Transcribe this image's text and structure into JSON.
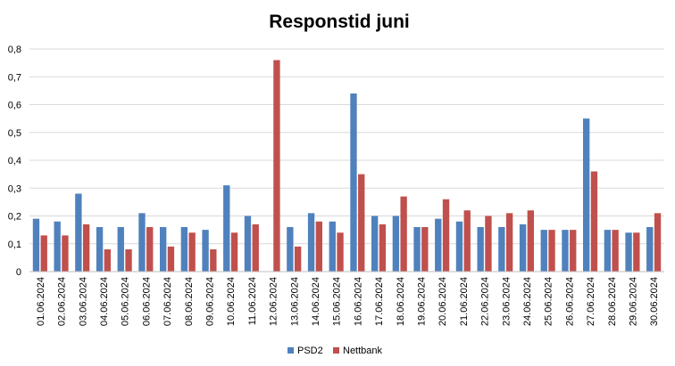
{
  "chart_data": {
    "type": "bar",
    "title": "Responstid juni",
    "xlabel": "",
    "ylabel": "",
    "ylim": [
      0,
      0.8
    ],
    "yticks": [
      "0",
      "0,1",
      "0,2",
      "0,3",
      "0,4",
      "0,5",
      "0,6",
      "0,7",
      "0,8"
    ],
    "grid": true,
    "legend_position": "bottom",
    "categories": [
      "01.06.2024",
      "02.06.2024",
      "03.06.2024",
      "04.06.2024",
      "05.06.2024",
      "06.06.2024",
      "07.06.2024",
      "08.06.2024",
      "09.06.2024",
      "10.06.2024",
      "11.06.2024",
      "12.06.2024",
      "13.06.2024",
      "14.06.2024",
      "15.06.2024",
      "16.06.2024",
      "17.06.2024",
      "18.06.2024",
      "19.06.2024",
      "20.06.2024",
      "21.06.2024",
      "22.06.2024",
      "23.06.2024",
      "24.06.2024",
      "25.06.2024",
      "26.06.2024",
      "27.06.2024",
      "28.06.2024",
      "29.06.2024",
      "30.06.2024"
    ],
    "series": [
      {
        "name": "PSD2",
        "color": "#4f81bd",
        "values": [
          0.19,
          0.18,
          0.28,
          0.16,
          0.16,
          0.21,
          0.16,
          0.16,
          0.15,
          0.31,
          0.2,
          null,
          0.16,
          0.21,
          0.18,
          0.64,
          0.2,
          0.2,
          0.16,
          0.19,
          0.18,
          0.16,
          0.16,
          0.17,
          0.15,
          0.15,
          0.55,
          0.15,
          0.14,
          0.16
        ]
      },
      {
        "name": "Nettbank",
        "color": "#c0504d",
        "values": [
          0.13,
          0.13,
          0.17,
          0.08,
          0.08,
          0.16,
          0.09,
          0.14,
          0.08,
          0.14,
          0.17,
          0.76,
          0.09,
          0.18,
          0.14,
          0.35,
          0.17,
          0.27,
          0.16,
          0.26,
          0.22,
          0.2,
          0.21,
          0.22,
          0.15,
          0.15,
          0.36,
          0.15,
          0.14,
          0.21
        ]
      }
    ]
  }
}
